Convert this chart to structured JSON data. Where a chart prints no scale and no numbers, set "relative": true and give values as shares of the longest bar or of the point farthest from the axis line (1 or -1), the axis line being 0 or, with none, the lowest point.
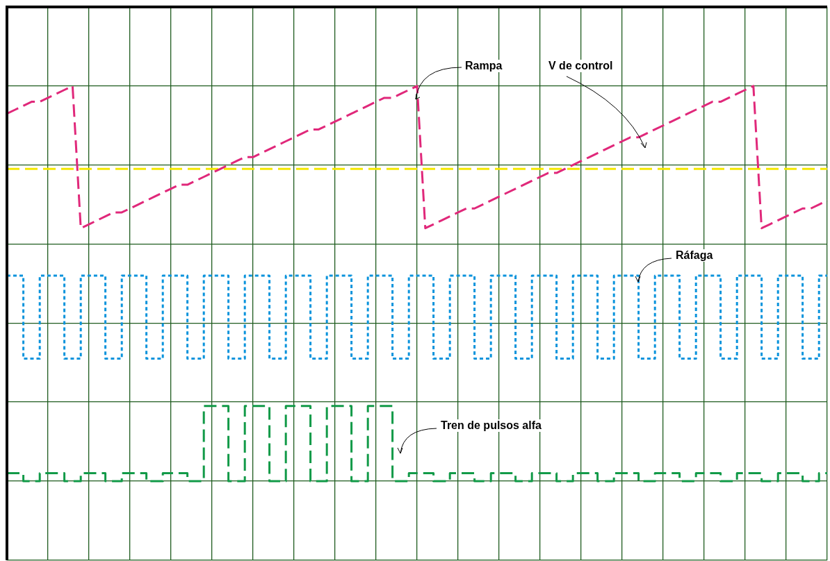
{
  "chart_data": {
    "type": "line",
    "relative": true,
    "legend": false,
    "grid": true,
    "categories": [
      null,
      null,
      null,
      null,
      null,
      null,
      null,
      null,
      null,
      null,
      null,
      null,
      null,
      null,
      null,
      null,
      null,
      null,
      null,
      null,
      null,
      null,
      null,
      null,
      null,
      null,
      null,
      null,
      null,
      null,
      null,
      null,
      null,
      null,
      null,
      null,
      null,
      null,
      null,
      null,
      null,
      null,
      null,
      null,
      null,
      null,
      null,
      null,
      null,
      null,
      null,
      null,
      null,
      null,
      null,
      null,
      null,
      null,
      null,
      null,
      null,
      null,
      null,
      null,
      null,
      null,
      null,
      null,
      null,
      null,
      null,
      null,
      null,
      null,
      null,
      null,
      null,
      null,
      null,
      null,
      null,
      null,
      null,
      null,
      null,
      null,
      null,
      null,
      null,
      null,
      null,
      null,
      null,
      null,
      null,
      null,
      null,
      null,
      null,
      null,
      null
    ],
    "series": [
      {
        "color": "#e0287a",
        "line_style": "dashed",
        "values": [
          0.93,
          0.94,
          0.95,
          0.96,
          0.96,
          0.97,
          0.98,
          0.99,
          1,
          0.64,
          0.65,
          0.66,
          0.67,
          0.68,
          0.68,
          0.69,
          0.7,
          0.71,
          0.72,
          0.73,
          0.74,
          0.75,
          0.75,
          0.76,
          0.77,
          0.78,
          0.79,
          0.8,
          0.81,
          0.82,
          0.82,
          0.83,
          0.84,
          0.85,
          0.86,
          0.87,
          0.88,
          0.89,
          0.89,
          0.9,
          0.91,
          0.92,
          0.93,
          0.94,
          0.95,
          0.96,
          0.97,
          0.97,
          0.98,
          0.99,
          1,
          0.64,
          0.65,
          0.66,
          0.67,
          0.68,
          0.69,
          0.69,
          0.7,
          0.71,
          0.72,
          0.73,
          0.74,
          0.75,
          0.76,
          0.77,
          0.78,
          0.78,
          0.79,
          0.8,
          0.81,
          0.82,
          0.83,
          0.84,
          0.85,
          0.86,
          0.87,
          0.87,
          0.88,
          0.89,
          0.9,
          0.91,
          0.92,
          0.93,
          0.94,
          0.95,
          0.96,
          0.96,
          0.97,
          0.98,
          0.99,
          1,
          0.64,
          0.65,
          0.66,
          0.67,
          0.68,
          0.69,
          0.69,
          0.7,
          0.71
        ]
      },
      {
        "color": "#f5e800",
        "line_style": "dashed",
        "values": [
          0.79,
          0.79,
          0.79,
          0.79,
          0.79,
          0.79,
          0.79,
          0.79,
          0.79,
          0.79,
          0.79,
          0.79,
          0.79,
          0.79,
          0.79,
          0.79,
          0.79,
          0.79,
          0.79,
          0.79,
          0.79,
          0.79,
          0.79,
          0.79,
          0.79,
          0.79,
          0.79,
          0.79,
          0.79,
          0.79,
          0.79,
          0.79,
          0.79,
          0.79,
          0.79,
          0.79,
          0.79,
          0.79,
          0.79,
          0.79,
          0.79,
          0.79,
          0.79,
          0.79,
          0.79,
          0.79,
          0.79,
          0.79,
          0.79,
          0.79,
          0.79,
          0.79,
          0.79,
          0.79,
          0.79,
          0.79,
          0.79,
          0.79,
          0.79,
          0.79,
          0.79,
          0.79,
          0.79,
          0.79,
          0.79,
          0.79,
          0.79,
          0.79,
          0.79,
          0.79,
          0.79,
          0.79,
          0.79,
          0.79,
          0.79,
          0.79,
          0.79,
          0.79,
          0.79,
          0.79,
          0.79,
          0.79,
          0.79,
          0.79,
          0.79,
          0.79,
          0.79,
          0.79,
          0.79,
          0.79,
          0.79,
          0.79,
          0.79,
          0.79,
          0.79,
          0.79,
          0.79,
          0.79,
          0.79,
          0.79,
          0.79
        ]
      },
      {
        "type": "step",
        "color": "#0a93dc",
        "line_style": "dotted",
        "values": [
          0.52,
          0.52,
          0.52,
          0.31,
          0.31,
          0.52,
          0.52,
          0.52,
          0.31,
          0.31,
          0.52,
          0.52,
          0.52,
          0.31,
          0.31,
          0.52,
          0.52,
          0.52,
          0.31,
          0.31,
          0.52,
          0.52,
          0.52,
          0.31,
          0.31,
          0.52,
          0.52,
          0.52,
          0.31,
          0.31,
          0.52,
          0.52,
          0.52,
          0.31,
          0.31,
          0.52,
          0.52,
          0.52,
          0.31,
          0.31,
          0.52,
          0.52,
          0.52,
          0.31,
          0.31,
          0.52,
          0.52,
          0.52,
          0.31,
          0.31,
          0.52,
          0.52,
          0.52,
          0.31,
          0.31,
          0.52,
          0.52,
          0.52,
          0.31,
          0.31,
          0.52,
          0.52,
          0.52,
          0.31,
          0.31,
          0.52,
          0.52,
          0.52,
          0.31,
          0.31,
          0.52,
          0.52,
          0.52,
          0.31,
          0.31,
          0.52,
          0.52,
          0.52,
          0.31,
          0.31,
          0.52,
          0.52,
          0.52,
          0.31,
          0.31,
          0.52,
          0.52,
          0.52,
          0.31,
          0.31,
          0.52,
          0.52,
          0.52,
          0.31,
          0.31,
          0.52,
          0.52,
          0.52,
          0.31,
          0.31,
          0.52
        ]
      },
      {
        "type": "step",
        "color": "#129a48",
        "line_style": "dashed",
        "values": [
          0.02,
          0.02,
          0.02,
          0,
          0,
          0.02,
          0.02,
          0.02,
          0,
          0,
          0.02,
          0.02,
          0.02,
          0,
          0,
          0.02,
          0.02,
          0.02,
          0,
          0,
          0.02,
          0.02,
          0.02,
          0,
          0,
          0.19,
          0.19,
          0.19,
          0,
          0,
          0.19,
          0.19,
          0.19,
          0,
          0,
          0.19,
          0.19,
          0.19,
          0,
          0,
          0.19,
          0.19,
          0.19,
          0,
          0,
          0.19,
          0.19,
          0.19,
          0,
          0,
          0.02,
          0.02,
          0.02,
          0,
          0,
          0.02,
          0.02,
          0.02,
          0,
          0,
          0.02,
          0.02,
          0.02,
          0,
          0,
          0.02,
          0.02,
          0.02,
          0,
          0,
          0.02,
          0.02,
          0.02,
          0,
          0,
          0.02,
          0.02,
          0.02,
          0,
          0,
          0.02,
          0.02,
          0.02,
          0,
          0,
          0.02,
          0.02,
          0.02,
          0,
          0,
          0.02,
          0.02,
          0.02,
          0,
          0,
          0.02,
          0.02,
          0.02,
          0,
          0,
          0.02
        ]
      }
    ],
    "annotations": [
      "Rampa",
      "V de control",
      "Ráfaga",
      "Tren de pulsos alfa"
    ]
  }
}
